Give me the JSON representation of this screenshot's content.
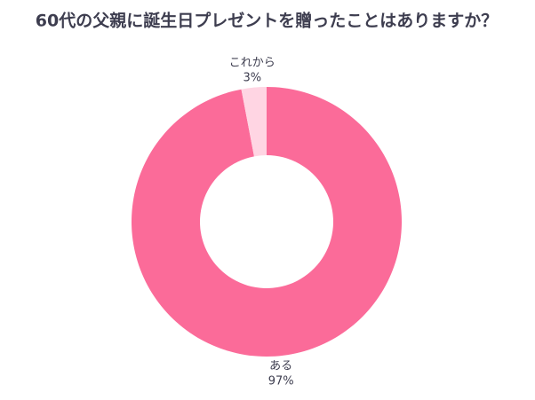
{
  "chart_data": {
    "type": "donut",
    "title": "60代の父親に誕生日プレゼントを贈ったことはありますか？",
    "categories": [
      "ある",
      "これから"
    ],
    "values": [
      97,
      3
    ],
    "value_labels": [
      "97%",
      "3%"
    ],
    "colors": [
      "#fb6b99",
      "#ffd5e3"
    ]
  }
}
